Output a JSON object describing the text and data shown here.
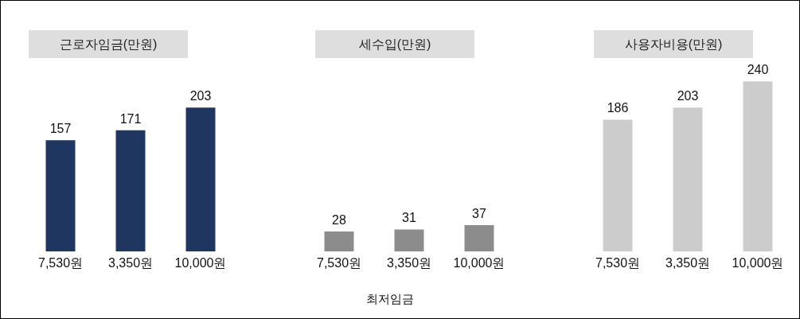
{
  "chart_data": [
    {
      "type": "bar",
      "title": "근로자임금(만원)",
      "categories": [
        "7,530원",
        "3,350원",
        "10,000원"
      ],
      "values": [
        157,
        171,
        203
      ],
      "color": "#1f3660",
      "data_labels": true
    },
    {
      "type": "bar",
      "title": "세수입(만원)",
      "xlabel": "최저임금",
      "categories": [
        "7,530원",
        "3,350원",
        "10,000원"
      ],
      "values": [
        28,
        31,
        37
      ],
      "color": "#8c8c8c",
      "data_labels": true
    },
    {
      "type": "bar",
      "title": "사용자비용(만원)",
      "categories": [
        "7,530원",
        "3,350원",
        "10,000원"
      ],
      "values": [
        186,
        203,
        240
      ],
      "color": "#cccccc",
      "data_labels": true
    }
  ]
}
